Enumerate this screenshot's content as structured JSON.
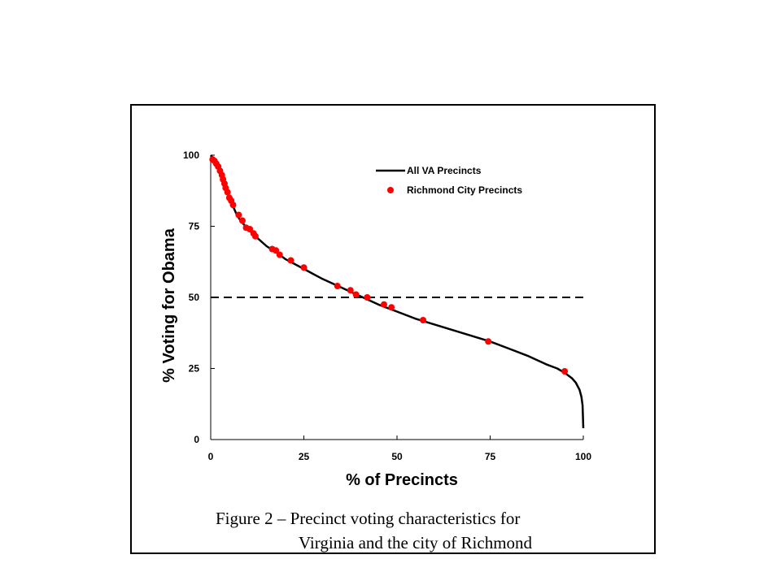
{
  "caption": {
    "line1": "Figure 2 – Precinct voting characteristics for",
    "line2": "Virginia and the city of Richmond"
  },
  "chart_data": {
    "type": "line",
    "title": "",
    "xlabel": "% of Precincts",
    "ylabel": "% Voting for Obama",
    "xlim": [
      0,
      100
    ],
    "ylim": [
      0,
      100
    ],
    "xticks": [
      "0",
      "25",
      "50",
      "75",
      "100"
    ],
    "yticks": [
      "0",
      "25",
      "50",
      "75",
      "100"
    ],
    "grid": false,
    "legend_position": "top-right",
    "reference_line": {
      "y": 50,
      "style": "dashed"
    },
    "series": [
      {
        "name": "All VA Precincts",
        "kind": "line",
        "color": "#000000",
        "x": [
          0,
          1,
          2,
          3,
          4,
          5,
          6,
          7,
          8,
          9,
          10,
          12,
          15,
          18,
          20,
          25,
          30,
          35,
          40,
          45,
          50,
          55,
          60,
          65,
          70,
          75,
          80,
          85,
          90,
          93,
          95,
          97,
          98,
          99,
          99.5,
          99.8,
          100
        ],
        "y": [
          100,
          98.5,
          96,
          92,
          88,
          85,
          82,
          79,
          77,
          75.5,
          74,
          71.5,
          68,
          65.5,
          63.5,
          60,
          56.5,
          53.5,
          50.5,
          47.5,
          45,
          42.5,
          40.5,
          38.5,
          36.5,
          34.5,
          32,
          29.5,
          26.5,
          25,
          23.5,
          21.5,
          20,
          17.5,
          15,
          12,
          4
        ]
      },
      {
        "name": "Richmond City Precincts",
        "kind": "scatter",
        "color": "#ff0000",
        "x": [
          0.5,
          1,
          1.5,
          2,
          2.5,
          3,
          3.3,
          3.7,
          4,
          4.5,
          5,
          5.5,
          6,
          7.5,
          8.5,
          9.5,
          10.5,
          11.5,
          12,
          16.5,
          17.5,
          18.5,
          21.5,
          25,
          34,
          37.5,
          39,
          42,
          46.5,
          48.5,
          57,
          74.5,
          95
        ],
        "y": [
          98.5,
          98,
          97,
          96,
          94.5,
          93,
          91.5,
          90,
          88.5,
          87,
          85,
          84,
          82.5,
          79,
          77,
          74.5,
          74,
          72.5,
          71.5,
          67,
          66.5,
          65,
          63,
          60.5,
          54,
          52.5,
          51,
          50,
          47.5,
          46.5,
          42,
          34.5,
          24
        ]
      }
    ]
  }
}
